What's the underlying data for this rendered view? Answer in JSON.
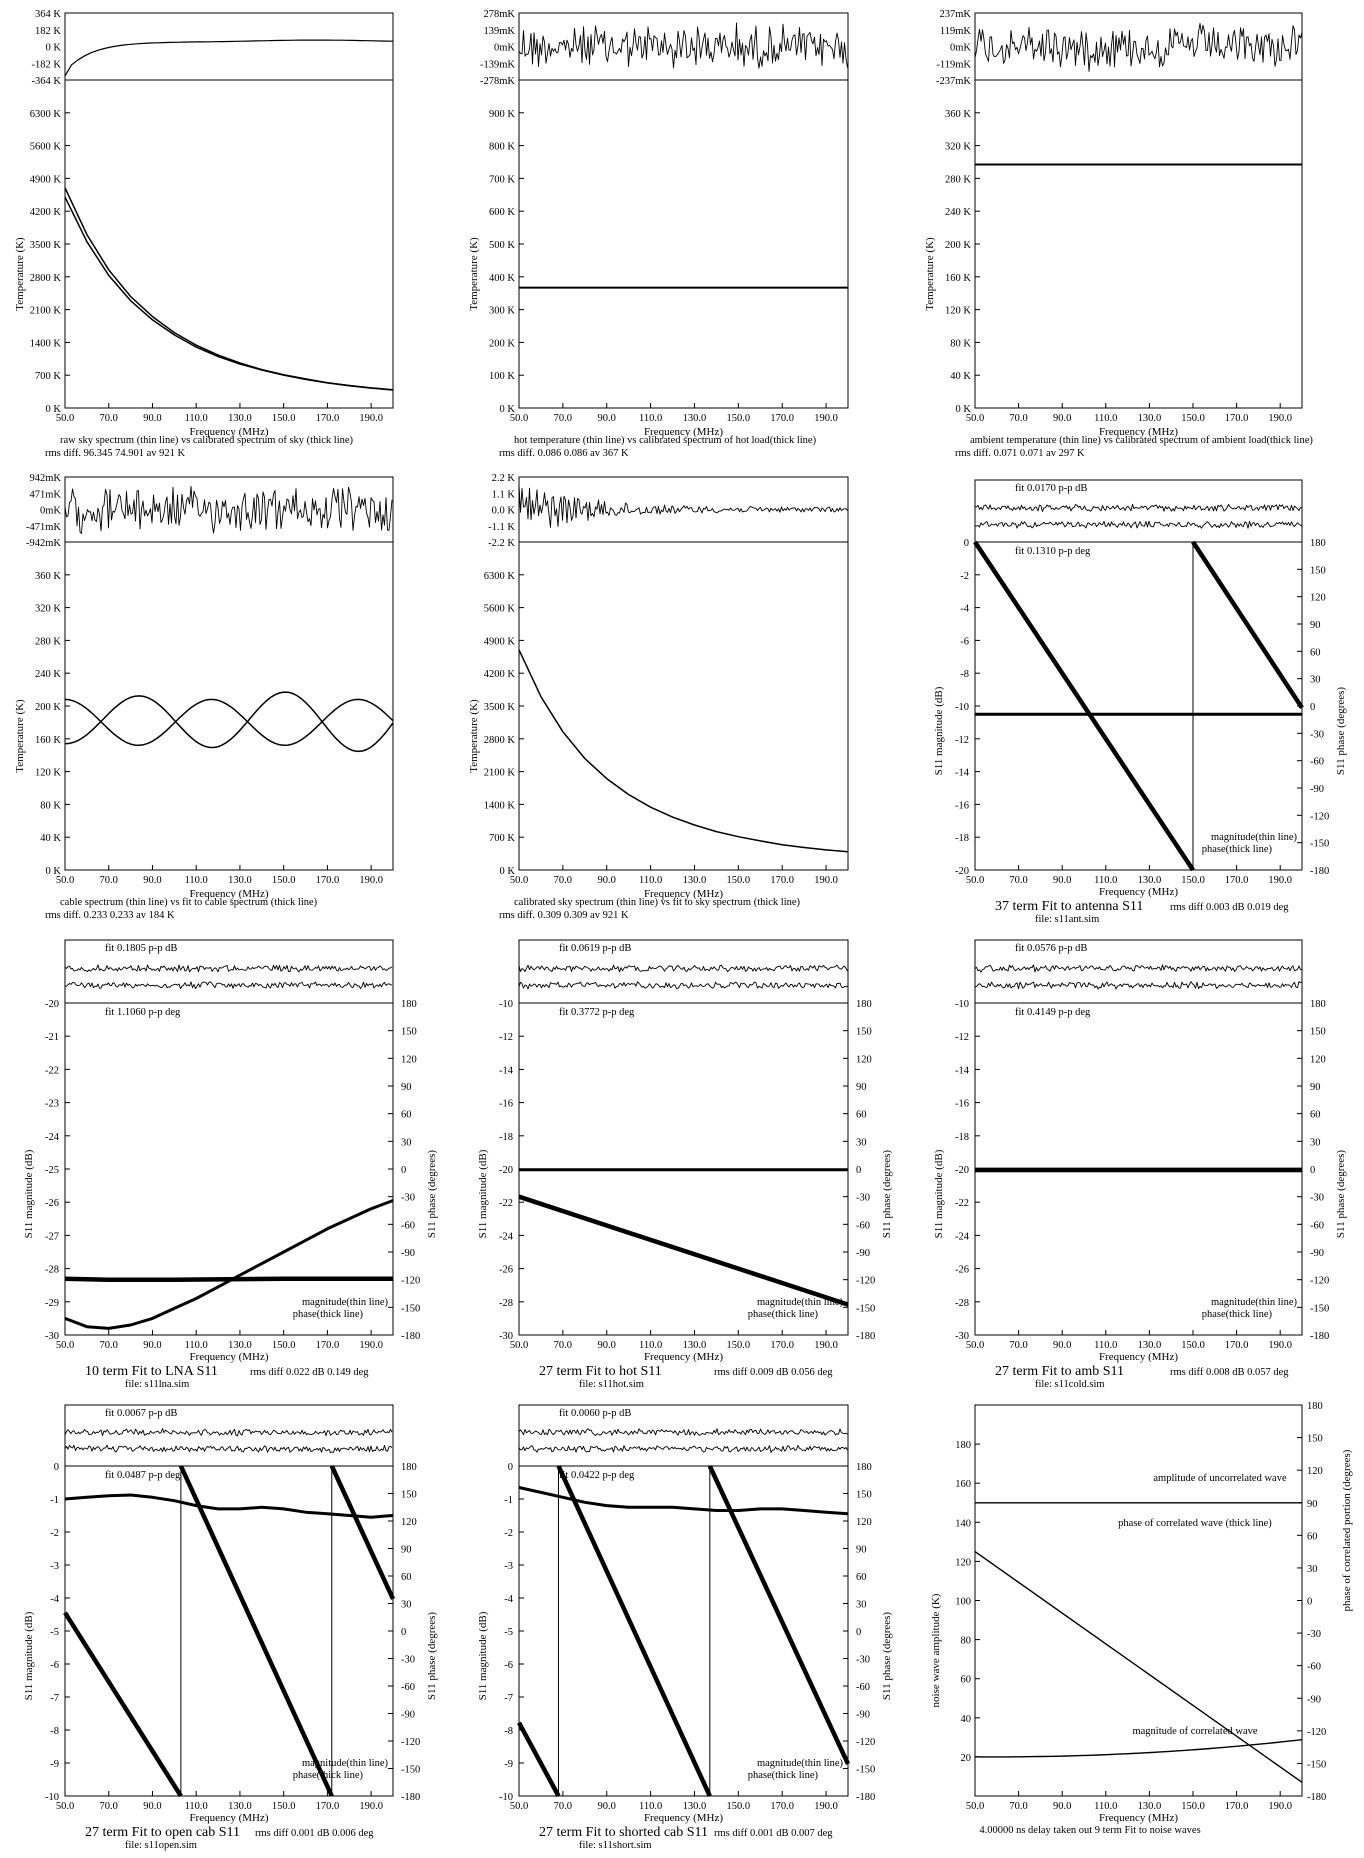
{
  "freq_ticks": [
    "50.0",
    "70.0",
    "90.0",
    "110.0",
    "130.0",
    "150.0",
    "170.0",
    "190.0"
  ],
  "common": {
    "xlabel": "Frequency (MHz)",
    "temp_ylabel": "Temperature (K)",
    "s11_mag_ylabel": "S11 magnitude (dB)",
    "s11_phase_ylabel": "S11 phase (degrees)",
    "legend_mag": "magnitude(thin line)",
    "legend_phase": "phase(thick line)",
    "phase_ticks": [
      "180",
      "150",
      "120",
      "90",
      "60",
      "30",
      "0",
      "-30",
      "-60",
      "-90",
      "-120",
      "-150",
      "-180"
    ]
  },
  "chart_data": [
    {
      "id": "sky",
      "type": "line",
      "diff_ticks": [
        "364 K",
        "182 K",
        "0 K",
        "-182 K",
        "-364 K"
      ],
      "y_ticks": [
        "6300 K",
        "5600 K",
        "4900 K",
        "4200 K",
        "3500 K",
        "2800 K",
        "2100 K",
        "1400 K",
        "700 K",
        "0 K"
      ],
      "ylim": [
        0,
        7000
      ],
      "xlim": [
        50,
        200
      ],
      "series": [
        {
          "x": [
            50,
            60,
            70,
            80,
            90,
            100,
            110,
            120,
            130,
            140,
            150,
            160,
            170,
            180,
            190,
            200
          ],
          "y": [
            4700,
            3700,
            2950,
            2380,
            1950,
            1610,
            1340,
            1130,
            960,
            820,
            710,
            620,
            540,
            480,
            430,
            390
          ]
        },
        {
          "x": [
            50,
            60,
            70,
            80,
            90,
            100,
            110,
            120,
            130,
            140,
            150,
            160,
            170,
            180,
            190,
            200
          ],
          "y": [
            4500,
            3550,
            2830,
            2290,
            1880,
            1560,
            1300,
            1100,
            940,
            810,
            700,
            610,
            535,
            475,
            425,
            385
          ]
        }
      ],
      "caption1": "raw sky spectrum (thin line) vs calibrated spectrum of sky (thick line)",
      "caption2": "rms diff. 96.345 74.901 av   921 K"
    },
    {
      "id": "hot",
      "type": "line",
      "diff_ticks": [
        "278mK",
        "139mK",
        "0mK",
        "-139mK",
        "-278mK"
      ],
      "y_ticks": [
        "900 K",
        "800 K",
        "700 K",
        "600 K",
        "500 K",
        "400 K",
        "300 K",
        "200 K",
        "100 K",
        "0 K"
      ],
      "ylim": [
        0,
        1000
      ],
      "xlim": [
        50,
        200
      ],
      "series": [
        {
          "x": [
            50,
            200
          ],
          "y": [
            367,
            367
          ]
        }
      ],
      "caption1": "hot temperature (thin line) vs calibrated spectrum of hot load(thick line)",
      "caption2": "rms diff. 0.086 0.086 av   367 K"
    },
    {
      "id": "ambient",
      "type": "line",
      "diff_ticks": [
        "237mK",
        "119mK",
        "0mK",
        "-119mK",
        "-237mK"
      ],
      "y_ticks": [
        "360 K",
        "320 K",
        "280 K",
        "240 K",
        "200 K",
        "160 K",
        "120 K",
        "80 K",
        "40 K",
        "0 K"
      ],
      "ylim": [
        0,
        400
      ],
      "xlim": [
        50,
        200
      ],
      "series": [
        {
          "x": [
            50,
            200
          ],
          "y": [
            297,
            297
          ]
        }
      ],
      "caption1": "ambient temperature (thin line) vs calibrated spectrum of ambient load(thick line)",
      "caption2": "rms diff. 0.071 0.071 av   297 K"
    },
    {
      "id": "cable",
      "type": "line",
      "diff_ticks": [
        "942mK",
        "471mK",
        "0mK",
        "-471mK",
        "-942mK"
      ],
      "y_ticks": [
        "360 K",
        "320 K",
        "280 K",
        "240 K",
        "200 K",
        "160 K",
        "120 K",
        "80 K",
        "40 K",
        "0 K"
      ],
      "ylim": [
        0,
        400
      ],
      "xlim": [
        50,
        200
      ],
      "series": [
        {
          "x": [
            50,
            65,
            80,
            97,
            114,
            131,
            148,
            166,
            183,
            200
          ],
          "y": [
            205,
            180,
            150,
            180,
            210,
            180,
            150,
            180,
            210,
            180
          ]
        },
        {
          "x": [
            50,
            65,
            80,
            97,
            114,
            131,
            148,
            166,
            183,
            200
          ],
          "y": [
            145,
            180,
            210,
            180,
            150,
            180,
            225,
            200,
            150,
            180
          ]
        }
      ],
      "caption1": "cable spectrum (thin line) vs fit to cable spectrum (thick line)",
      "caption2": "rms diff. 0.233 0.233 av   184 K"
    },
    {
      "id": "calsky",
      "type": "line",
      "diff_ticks": [
        "2.2 K",
        "1.1 K",
        "0.0 K",
        "-1.1 K",
        "-2.2 K"
      ],
      "y_ticks": [
        "6300 K",
        "5600 K",
        "4900 K",
        "4200 K",
        "3500 K",
        "2800 K",
        "2100 K",
        "1400 K",
        "700 K",
        "0 K"
      ],
      "ylim": [
        0,
        7000
      ],
      "xlim": [
        50,
        200
      ],
      "series": [
        {
          "x": [
            50,
            60,
            70,
            80,
            90,
            100,
            110,
            120,
            130,
            140,
            150,
            160,
            170,
            180,
            190,
            200
          ],
          "y": [
            4700,
            3700,
            2950,
            2380,
            1950,
            1610,
            1340,
            1130,
            960,
            820,
            710,
            620,
            540,
            480,
            430,
            390
          ]
        }
      ],
      "caption1": "calibrated sky spectrum (thin line) vs fit to sky spectrum (thick line)",
      "caption2": "rms diff. 0.309 0.309 av   921 K"
    },
    {
      "id": "antenna",
      "type": "line",
      "fit_db": "fit 0.0170 p-p dB",
      "fit_deg": "fit 0.1310 p-p deg",
      "mag_ticks": [
        "0",
        "-2",
        "-4",
        "-6",
        "-8",
        "-10",
        "-12",
        "-14",
        "-16",
        "-18",
        "-20"
      ],
      "mag_lim": [
        -20,
        0
      ],
      "mag_series": {
        "x": [
          50,
          200
        ],
        "y": [
          -10.5,
          -10.5
        ]
      },
      "phase_series": [
        {
          "x": [
            50,
            150
          ],
          "y": [
            180,
            -180
          ]
        },
        {
          "x": [
            150,
            200
          ],
          "y": [
            180,
            -2
          ]
        }
      ],
      "title": "37 term Fit to antenna S11",
      "rms": "rms diff  0.003 dB  0.019 deg",
      "file": "file: s11ant.sim"
    },
    {
      "id": "lna",
      "type": "line",
      "fit_db": "fit 0.1805 p-p dB",
      "fit_deg": "fit 1.1060 p-p deg",
      "mag_ticks": [
        "-20",
        "-21",
        "-22",
        "-23",
        "-24",
        "-25",
        "-26",
        "-27",
        "-28",
        "-29",
        "-30"
      ],
      "mag_lim": [
        -30,
        -20
      ],
      "mag_series": {
        "x": [
          50,
          60,
          70,
          80,
          90,
          100,
          110,
          120,
          130,
          140,
          150,
          160,
          170,
          180,
          190,
          200
        ],
        "y": [
          -29.5,
          -29.75,
          -29.8,
          -29.7,
          -29.5,
          -29.2,
          -28.9,
          -28.55,
          -28.2,
          -27.85,
          -27.5,
          -27.15,
          -26.8,
          -26.5,
          -26.2,
          -25.95
        ]
      },
      "phase_series": [
        {
          "x": [
            50,
            70,
            100,
            150,
            200
          ],
          "y": [
            -119,
            -120,
            -120,
            -119,
            -119
          ]
        }
      ],
      "title": "10 term Fit to LNA  S11",
      "rms": "rms diff  0.022 dB  0.149 deg",
      "file": "file: s11lna.sim"
    },
    {
      "id": "hotS11",
      "type": "line",
      "fit_db": "fit 0.0619 p-p dB",
      "fit_deg": "fit 0.3772 p-p deg",
      "mag_ticks": [
        "-10",
        "-12",
        "-14",
        "-16",
        "-18",
        "-20",
        "-22",
        "-24",
        "-26",
        "-28",
        "-30"
      ],
      "mag_lim": [
        -30,
        -10
      ],
      "mag_series": {
        "x": [
          50,
          200
        ],
        "y": [
          -20.05,
          -20.05
        ]
      },
      "phase_series": [
        {
          "x": [
            50,
            200
          ],
          "y": [
            -30,
            -147
          ]
        }
      ],
      "title": "27 term Fit to hot S11",
      "rms": "rms diff  0.009 dB  0.056 deg",
      "file": "file: s11hot.sim"
    },
    {
      "id": "ambS11",
      "type": "line",
      "fit_db": "fit 0.0576 p-p dB",
      "fit_deg": "fit 0.4149 p-p deg",
      "mag_ticks": [
        "-10",
        "-12",
        "-14",
        "-16",
        "-18",
        "-20",
        "-22",
        "-24",
        "-26",
        "-28",
        "-30"
      ],
      "mag_lim": [
        -30,
        -10
      ],
      "mag_series": {
        "x": [
          50,
          200
        ],
        "y": [
          -20.1,
          -20.1
        ]
      },
      "phase_series": [
        {
          "x": [
            50,
            200
          ],
          "y": [
            -1,
            -1
          ]
        }
      ],
      "title": "27 term Fit to amb S11",
      "rms": "rms diff  0.008 dB  0.057 deg",
      "file": "file: s11cold.sim"
    },
    {
      "id": "open",
      "type": "line",
      "fit_db": "fit 0.0067 p-p dB",
      "fit_deg": "fit 0.0487 p-p deg",
      "mag_ticks": [
        "0",
        "-1",
        "-2",
        "-3",
        "-4",
        "-5",
        "-6",
        "-7",
        "-8",
        "-9",
        "-10"
      ],
      "mag_lim": [
        -10,
        0
      ],
      "mag_series": {
        "x": [
          50,
          60,
          70,
          80,
          90,
          100,
          110,
          120,
          130,
          140,
          150,
          160,
          170,
          180,
          190,
          200
        ],
        "y": [
          -1.0,
          -0.95,
          -0.9,
          -0.88,
          -0.95,
          -1.05,
          -1.2,
          -1.3,
          -1.3,
          -1.25,
          -1.3,
          -1.4,
          -1.45,
          -1.5,
          -1.55,
          -1.5
        ]
      },
      "phase_series": [
        {
          "x": [
            50,
            103
          ],
          "y": [
            20,
            -180
          ]
        },
        {
          "x": [
            103,
            172
          ],
          "y": [
            180,
            -180
          ]
        },
        {
          "x": [
            172,
            200
          ],
          "y": [
            180,
            35
          ]
        }
      ],
      "title": "27 term Fit to open cab S11",
      "rms": "rms diff  0.001 dB  0.006 deg",
      "file": "file: s11open.sim"
    },
    {
      "id": "short",
      "type": "line",
      "fit_db": "fit 0.0060 p-p dB",
      "fit_deg": "fit 0.0422 p-p deg",
      "mag_ticks": [
        "0",
        "-1",
        "-2",
        "-3",
        "-4",
        "-5",
        "-6",
        "-7",
        "-8",
        "-9",
        "-10"
      ],
      "mag_lim": [
        -10,
        0
      ],
      "mag_series": {
        "x": [
          50,
          60,
          70,
          80,
          90,
          100,
          110,
          120,
          130,
          140,
          150,
          160,
          170,
          180,
          190,
          200
        ],
        "y": [
          -0.65,
          -0.8,
          -0.95,
          -1.1,
          -1.2,
          -1.25,
          -1.25,
          -1.25,
          -1.3,
          -1.35,
          -1.35,
          -1.3,
          -1.3,
          -1.35,
          -1.4,
          -1.45
        ]
      },
      "phase_series": [
        {
          "x": [
            50,
            68
          ],
          "y": [
            -100,
            -180
          ]
        },
        {
          "x": [
            68,
            137
          ],
          "y": [
            180,
            -180
          ]
        },
        {
          "x": [
            137,
            200
          ],
          "y": [
            180,
            -145
          ]
        }
      ],
      "title": "27 term Fit to shorted cab S11",
      "rms": "rms diff  0.001 dB  0.007 deg",
      "file": "file: s11short.sim"
    },
    {
      "id": "noise",
      "type": "line",
      "ylabel": "noise wave amplitude (K)",
      "y2label": "phase of correlated portion (degrees)",
      "y_ticks": [
        "180",
        "160",
        "140",
        "120",
        "100",
        "80",
        "60",
        "40",
        "20"
      ],
      "ylim": [
        0,
        200
      ],
      "y2_ticks": [
        "180",
        "150",
        "120",
        "90",
        "60",
        "30",
        "0",
        "-30",
        "-60",
        "-90",
        "-120",
        "-150",
        "-180"
      ],
      "series": [
        {
          "name": "amplitude of uncorrelated wave",
          "x": [
            50,
            200
          ],
          "y": [
            150,
            150
          ]
        },
        {
          "name": "magnitude of correlated wave",
          "x": [
            50,
            70,
            100,
            130,
            160,
            200
          ],
          "y": [
            20,
            19.5,
            22,
            24,
            26.5,
            30
          ]
        },
        {
          "name": "phase of correlated wave (thick line)",
          "x": [
            50,
            200
          ],
          "y": [
            125,
            7
          ]
        }
      ],
      "label_uncorr": "amplitude of uncorrelated wave",
      "label_phase": "phase of correlated wave (thick line)",
      "label_mag": "magnitude of correlated wave",
      "caption": "4.00000 ns delay taken out 9 term Fit to noise waves"
    }
  ]
}
